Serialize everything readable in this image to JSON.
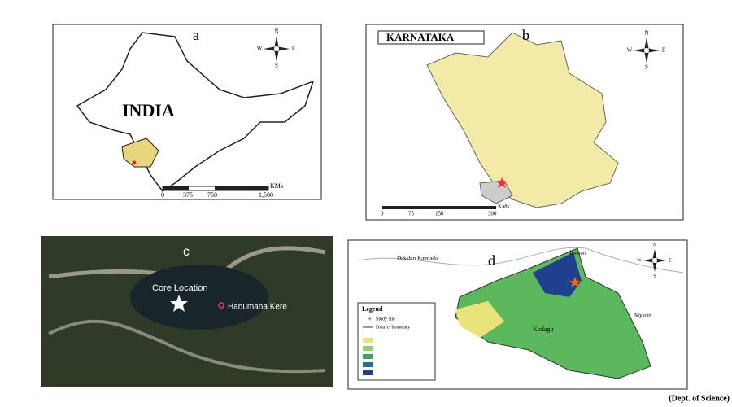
{
  "caption": "(Dept. of Science)",
  "compass": [
    "N",
    "E",
    "S",
    "W"
  ],
  "panels": [
    {
      "label": "a",
      "title": "INDIA",
      "scale": [
        "0",
        "375",
        "750",
        "1,500"
      ],
      "scale_unit": "KMs"
    },
    {
      "label": "b",
      "title": "KARNATAKA",
      "scale": [
        "0",
        "75",
        "150",
        "300"
      ],
      "scale_unit": "KMs"
    },
    {
      "label": "c",
      "places": [
        "Core Location",
        "Hanumana Kere"
      ]
    },
    {
      "label": "d",
      "places": [
        "Dakshin Kannada",
        "Hassan",
        "Kodagu",
        "Mysore"
      ],
      "legend": {
        "title": "Legend",
        "items": [
          "Study site",
          "District boundary"
        ]
      }
    }
  ]
}
